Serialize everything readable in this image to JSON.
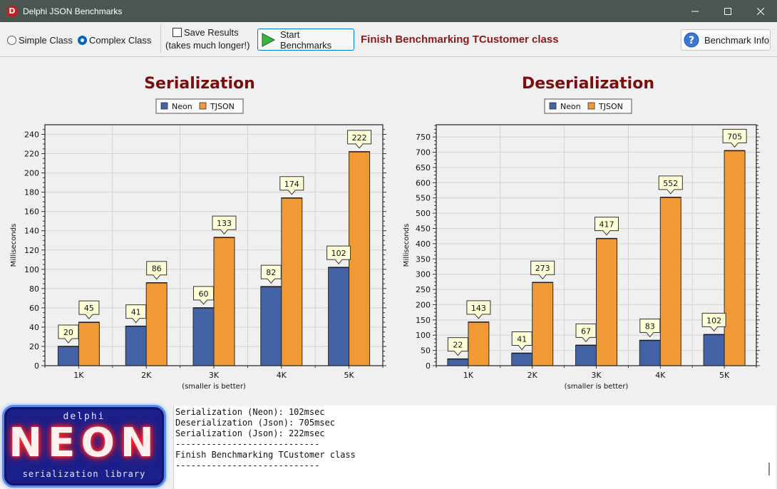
{
  "window": {
    "title": "Delphi JSON Benchmarks",
    "icon_letter": "D",
    "controls": [
      "minimize-icon",
      "maximize-icon",
      "close-icon"
    ]
  },
  "toolbar": {
    "radio_simple": "Simple Class",
    "radio_complex": "Complex Class",
    "selected_radio": "Complex Class",
    "save_results_label": "Save Results",
    "save_results_note": "(takes much longer!)",
    "save_results_checked": false,
    "start_button": "Start Benchmarks",
    "status_message": "Finish Benchmarking TCustomer class",
    "info_button": "Benchmark Info",
    "colors": {
      "status": "#8b1a1a",
      "accent": "#0078d4"
    }
  },
  "chart_data": [
    {
      "type": "bar",
      "title": "Serialization",
      "xlabel": "(smaller is better)",
      "ylabel": "Milliseconds",
      "categories": [
        "1K",
        "2K",
        "3K",
        "4K",
        "5K"
      ],
      "series": [
        {
          "name": "Neon",
          "color": "#4363a6",
          "values": [
            20,
            41,
            60,
            82,
            102
          ]
        },
        {
          "name": "TJSON",
          "color": "#f19a35",
          "values": [
            45,
            86,
            133,
            174,
            222
          ]
        }
      ],
      "ylim": [
        0,
        250
      ],
      "yticks": [
        0,
        20,
        40,
        60,
        80,
        100,
        120,
        140,
        160,
        180,
        200,
        220,
        240
      ],
      "legend": "top-center",
      "grid": true
    },
    {
      "type": "bar",
      "title": "Deserialization",
      "xlabel": "(smaller is better)",
      "ylabel": "Milliseconds",
      "categories": [
        "1K",
        "2K",
        "3K",
        "4K",
        "5K"
      ],
      "series": [
        {
          "name": "Neon",
          "color": "#4363a6",
          "values": [
            22,
            41,
            67,
            83,
            102
          ]
        },
        {
          "name": "TJSON",
          "color": "#f19a35",
          "values": [
            143,
            273,
            417,
            552,
            705
          ]
        }
      ],
      "ylim": [
        0,
        790
      ],
      "yticks": [
        0,
        50,
        100,
        150,
        200,
        250,
        300,
        350,
        400,
        450,
        500,
        550,
        600,
        650,
        700,
        750
      ],
      "legend": "top-center",
      "grid": true
    }
  ],
  "logo": {
    "top_text": "delphi",
    "main_text": "NEON",
    "bottom_text": "serialization library"
  },
  "log": {
    "lines": [
      "Serialization (Neon): 102msec",
      "Deserialization (Json): 705msec",
      "Serialization (Json): 222msec",
      "----------------------------",
      "Finish Benchmarking TCustomer class",
      "----------------------------"
    ]
  }
}
